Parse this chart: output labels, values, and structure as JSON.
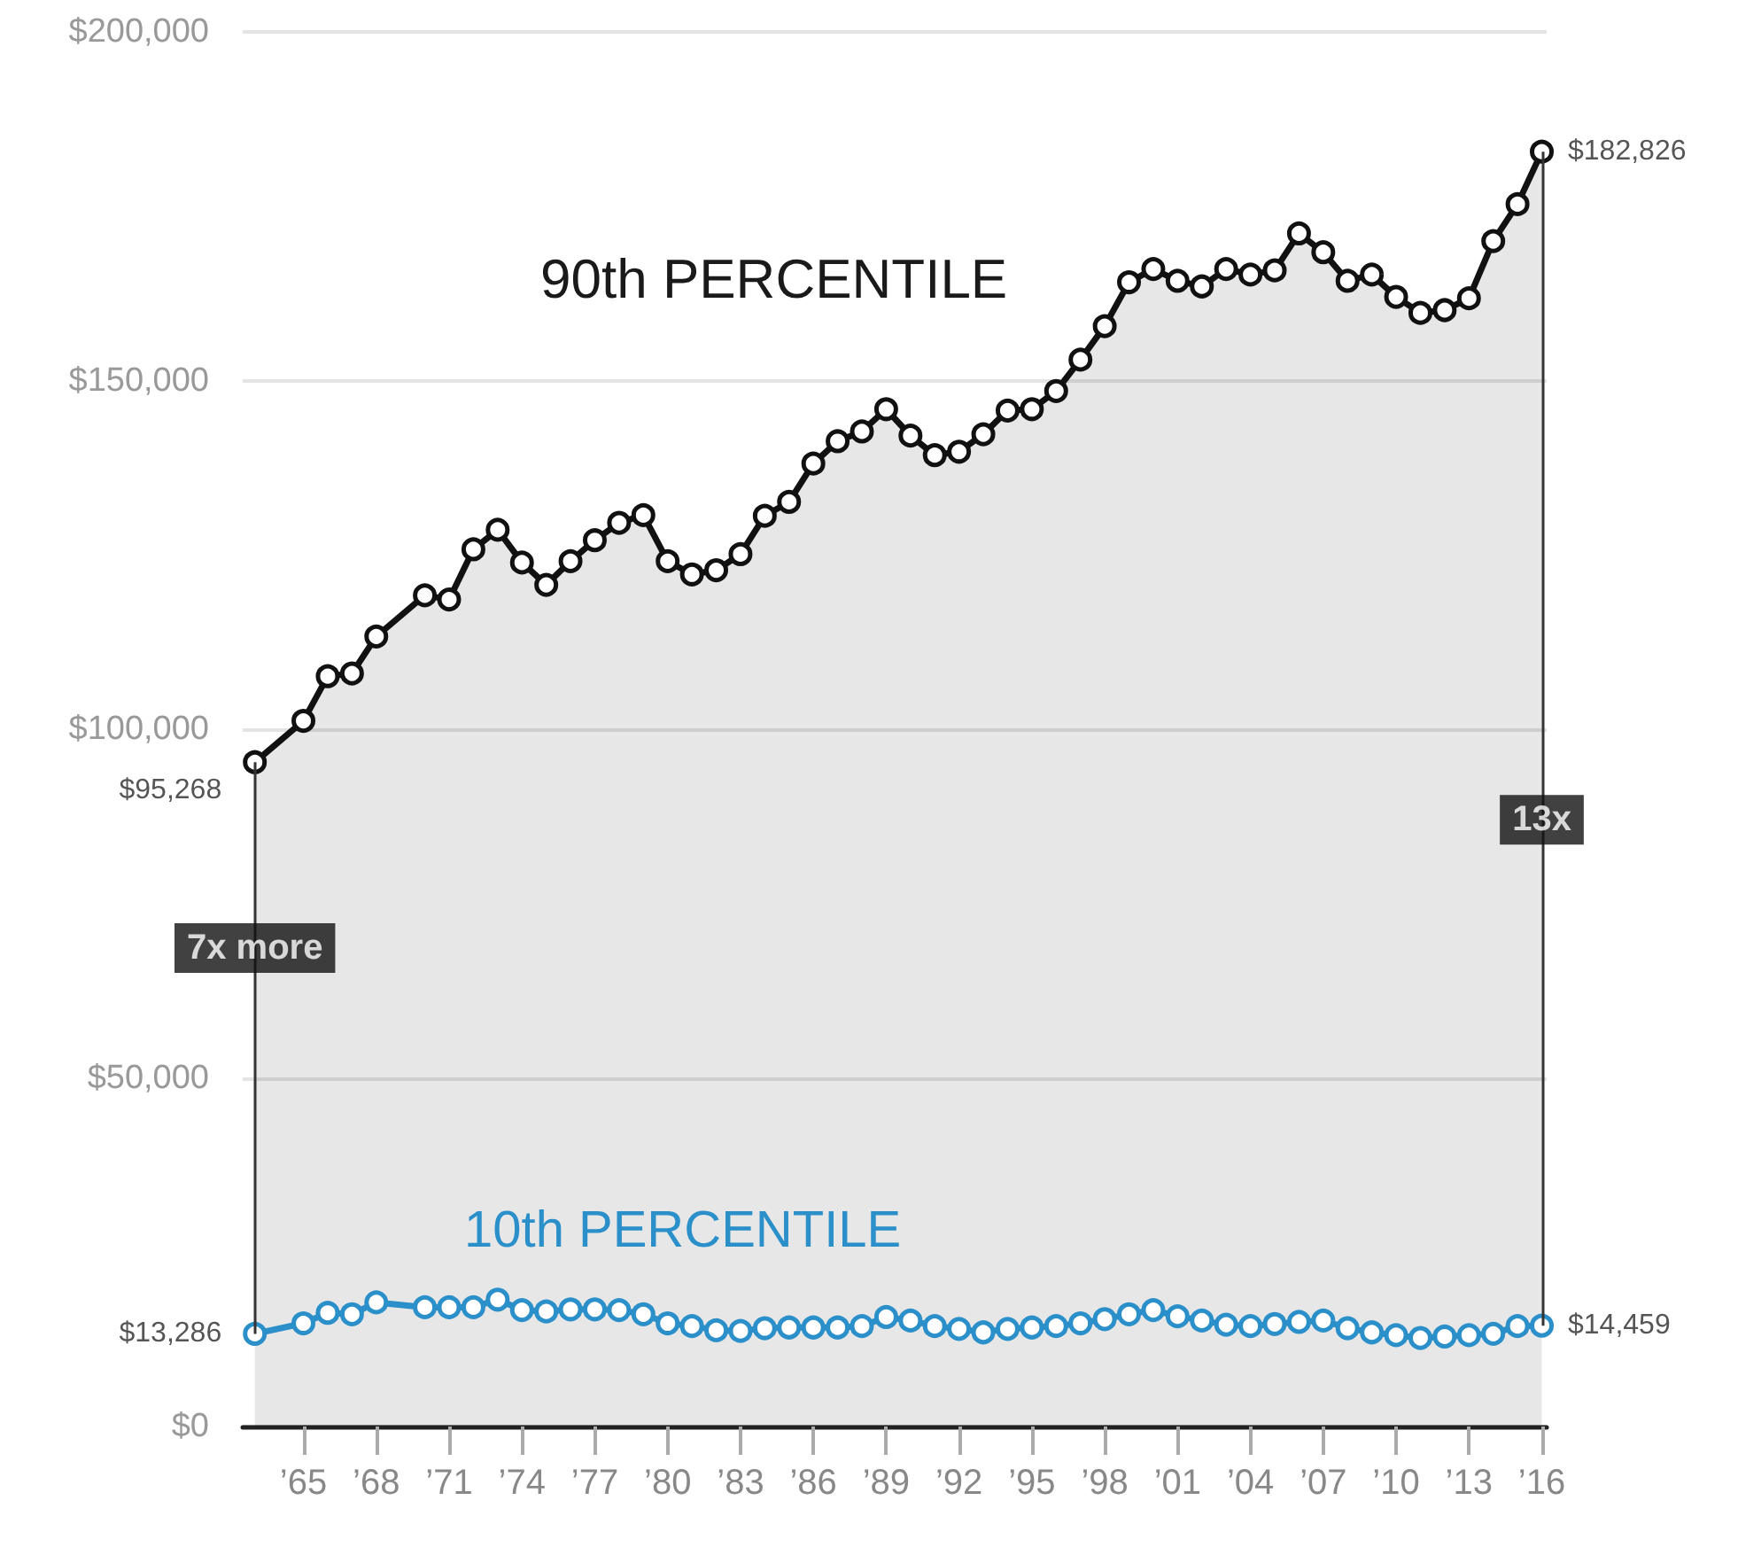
{
  "chart_data": {
    "type": "line",
    "annotations": [
      {
        "text": "7x more",
        "x": 1963,
        "y": 68600
      },
      {
        "text": "13x",
        "x": 2016,
        "y": 87000
      }
    ],
    "series": [
      {
        "name": "90th PERCENTILE",
        "type": "area",
        "color": "#111111",
        "x": [
          1963,
          1965,
          1966,
          1967,
          1968,
          1970,
          1971,
          1972,
          1973,
          1974,
          1975,
          1976,
          1977,
          1978,
          1979,
          1980,
          1981,
          1982,
          1983,
          1984,
          1985,
          1986,
          1987,
          1988,
          1989,
          1990,
          1991,
          1992,
          1993,
          1994,
          1995,
          1996,
          1997,
          1998,
          1999,
          2000,
          2001,
          2002,
          2003,
          2004,
          2005,
          2006,
          2007,
          2008,
          2009,
          2010,
          2011,
          2012,
          2013,
          2014,
          2015,
          2016
        ],
        "values": [
          95268,
          101200,
          107600,
          108000,
          113300,
          119200,
          118600,
          125800,
          128600,
          123900,
          120700,
          124100,
          127100,
          129600,
          130700,
          124100,
          122200,
          122800,
          125100,
          130600,
          132600,
          138100,
          141300,
          142700,
          145900,
          142100,
          139300,
          139800,
          142300,
          145700,
          145900,
          148500,
          153000,
          157800,
          164100,
          166000,
          164300,
          163500,
          166000,
          165200,
          165800,
          171100,
          168400,
          164300,
          165200,
          162000,
          159700,
          160100,
          161800,
          170000,
          175300,
          182826
        ],
        "value_labels": [
          "$95,268",
          null,
          null,
          null,
          null,
          null,
          null,
          null,
          null,
          null,
          null,
          null,
          null,
          null,
          null,
          null,
          null,
          null,
          null,
          null,
          null,
          null,
          null,
          null,
          null,
          null,
          null,
          null,
          null,
          null,
          null,
          null,
          null,
          null,
          null,
          null,
          null,
          null,
          null,
          null,
          null,
          null,
          null,
          null,
          null,
          null,
          null,
          null,
          null,
          null,
          null,
          "$182,826"
        ]
      },
      {
        "name": "10th PERCENTILE",
        "color": "#2b8fc9",
        "x": [
          1963,
          1965,
          1966,
          1967,
          1968,
          1970,
          1971,
          1972,
          1973,
          1974,
          1975,
          1976,
          1977,
          1978,
          1979,
          1980,
          1981,
          1982,
          1983,
          1984,
          1985,
          1986,
          1987,
          1988,
          1989,
          1990,
          1991,
          1992,
          1993,
          1994,
          1995,
          1996,
          1997,
          1998,
          1999,
          2000,
          2001,
          2002,
          2003,
          2004,
          2005,
          2006,
          2007,
          2008,
          2009,
          2010,
          2011,
          2012,
          2013,
          2014,
          2015,
          2016
        ],
        "values": [
          13286,
          14800,
          16300,
          16100,
          17800,
          17100,
          17100,
          17100,
          18200,
          16700,
          16500,
          16800,
          16800,
          16700,
          16100,
          14800,
          14400,
          13800,
          13700,
          14100,
          14200,
          14200,
          14200,
          14400,
          15700,
          15200,
          14400,
          14000,
          13500,
          14000,
          14200,
          14400,
          14800,
          15400,
          16100,
          16700,
          15800,
          15200,
          14600,
          14400,
          14700,
          15000,
          15200,
          14100,
          13500,
          13100,
          12700,
          12900,
          13100,
          13300,
          14400,
          14459
        ],
        "value_labels": [
          "$13,286",
          null,
          null,
          null,
          null,
          null,
          null,
          null,
          null,
          null,
          null,
          null,
          null,
          null,
          null,
          null,
          null,
          null,
          null,
          null,
          null,
          null,
          null,
          null,
          null,
          null,
          null,
          null,
          null,
          null,
          null,
          null,
          null,
          null,
          null,
          null,
          null,
          null,
          null,
          null,
          null,
          null,
          null,
          null,
          null,
          null,
          null,
          null,
          null,
          null,
          null,
          "$14,459"
        ]
      }
    ],
    "xlim": [
      1962.5,
      2016.2
    ],
    "xticks": [
      {
        "value": 1965,
        "label": "’65"
      },
      {
        "value": 1968,
        "label": "’68"
      },
      {
        "value": 1971,
        "label": "’71"
      },
      {
        "value": 1974,
        "label": "’74"
      },
      {
        "value": 1977,
        "label": "’77"
      },
      {
        "value": 1980,
        "label": "’80"
      },
      {
        "value": 1983,
        "label": "’83"
      },
      {
        "value": 1986,
        "label": "’86"
      },
      {
        "value": 1989,
        "label": "’89"
      },
      {
        "value": 1992,
        "label": "’92"
      },
      {
        "value": 1995,
        "label": "’95"
      },
      {
        "value": 1998,
        "label": "’98"
      },
      {
        "value": 2001,
        "label": "’01"
      },
      {
        "value": 2004,
        "label": "’04"
      },
      {
        "value": 2007,
        "label": "’07"
      },
      {
        "value": 2010,
        "label": "’10"
      },
      {
        "value": 2013,
        "label": "’13"
      },
      {
        "value": 2016,
        "label": "’16"
      }
    ],
    "ylim": [
      0,
      200000
    ],
    "yticks": [
      {
        "value": 0,
        "label": "$0"
      },
      {
        "value": 50000,
        "label": "$50,000"
      },
      {
        "value": 100000,
        "label": "$100,000"
      },
      {
        "value": 150000,
        "label": "$150,000"
      },
      {
        "value": 200000,
        "label": "$200,000"
      }
    ],
    "grid": "y",
    "legend": false,
    "marker": "circle",
    "line_style": "solid"
  }
}
